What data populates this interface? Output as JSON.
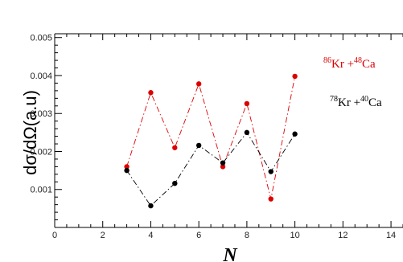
{
  "chart_data": {
    "type": "line",
    "xlabel": "N",
    "ylabel": "dσ/dΩ(a.u)",
    "xlim": [
      0,
      14.5
    ],
    "ylim": [
      0,
      0.0051
    ],
    "x_ticks": [
      0,
      2,
      4,
      6,
      8,
      10,
      12,
      14
    ],
    "x_tick_labels": [
      "0",
      "2",
      "4",
      "6",
      "8",
      "10",
      "12",
      "14"
    ],
    "y_ticks": [
      0.001,
      0.002,
      0.003,
      0.004,
      0.005
    ],
    "y_tick_labels": [
      "0.001",
      "0.002",
      "0.003",
      "0.004",
      "0.005"
    ],
    "grid": false,
    "legend_position": "top-right",
    "series": [
      {
        "name": "86Kr +48Ca",
        "label_parts": {
          "m1": "86",
          "e1": "Kr +",
          "m2": "48",
          "e2": "Ca"
        },
        "color": "#dd0000",
        "line_style": "dash-dot",
        "x": [
          3,
          4,
          5,
          6,
          7,
          8,
          9,
          10
        ],
        "y": [
          0.0016,
          0.00355,
          0.0021,
          0.00378,
          0.0016,
          0.00326,
          0.00075,
          0.00398
        ]
      },
      {
        "name": "78Kr +40Ca",
        "label_parts": {
          "m1": "78",
          "e1": "Kr +",
          "m2": "40",
          "e2": "Ca"
        },
        "color": "#000000",
        "line_style": "dash-dot",
        "x": [
          3,
          4,
          5,
          6,
          7,
          8,
          9,
          10
        ],
        "y": [
          0.0015,
          0.00057,
          0.00116,
          0.00216,
          0.0017,
          0.0025,
          0.00147,
          0.00246
        ]
      }
    ]
  }
}
